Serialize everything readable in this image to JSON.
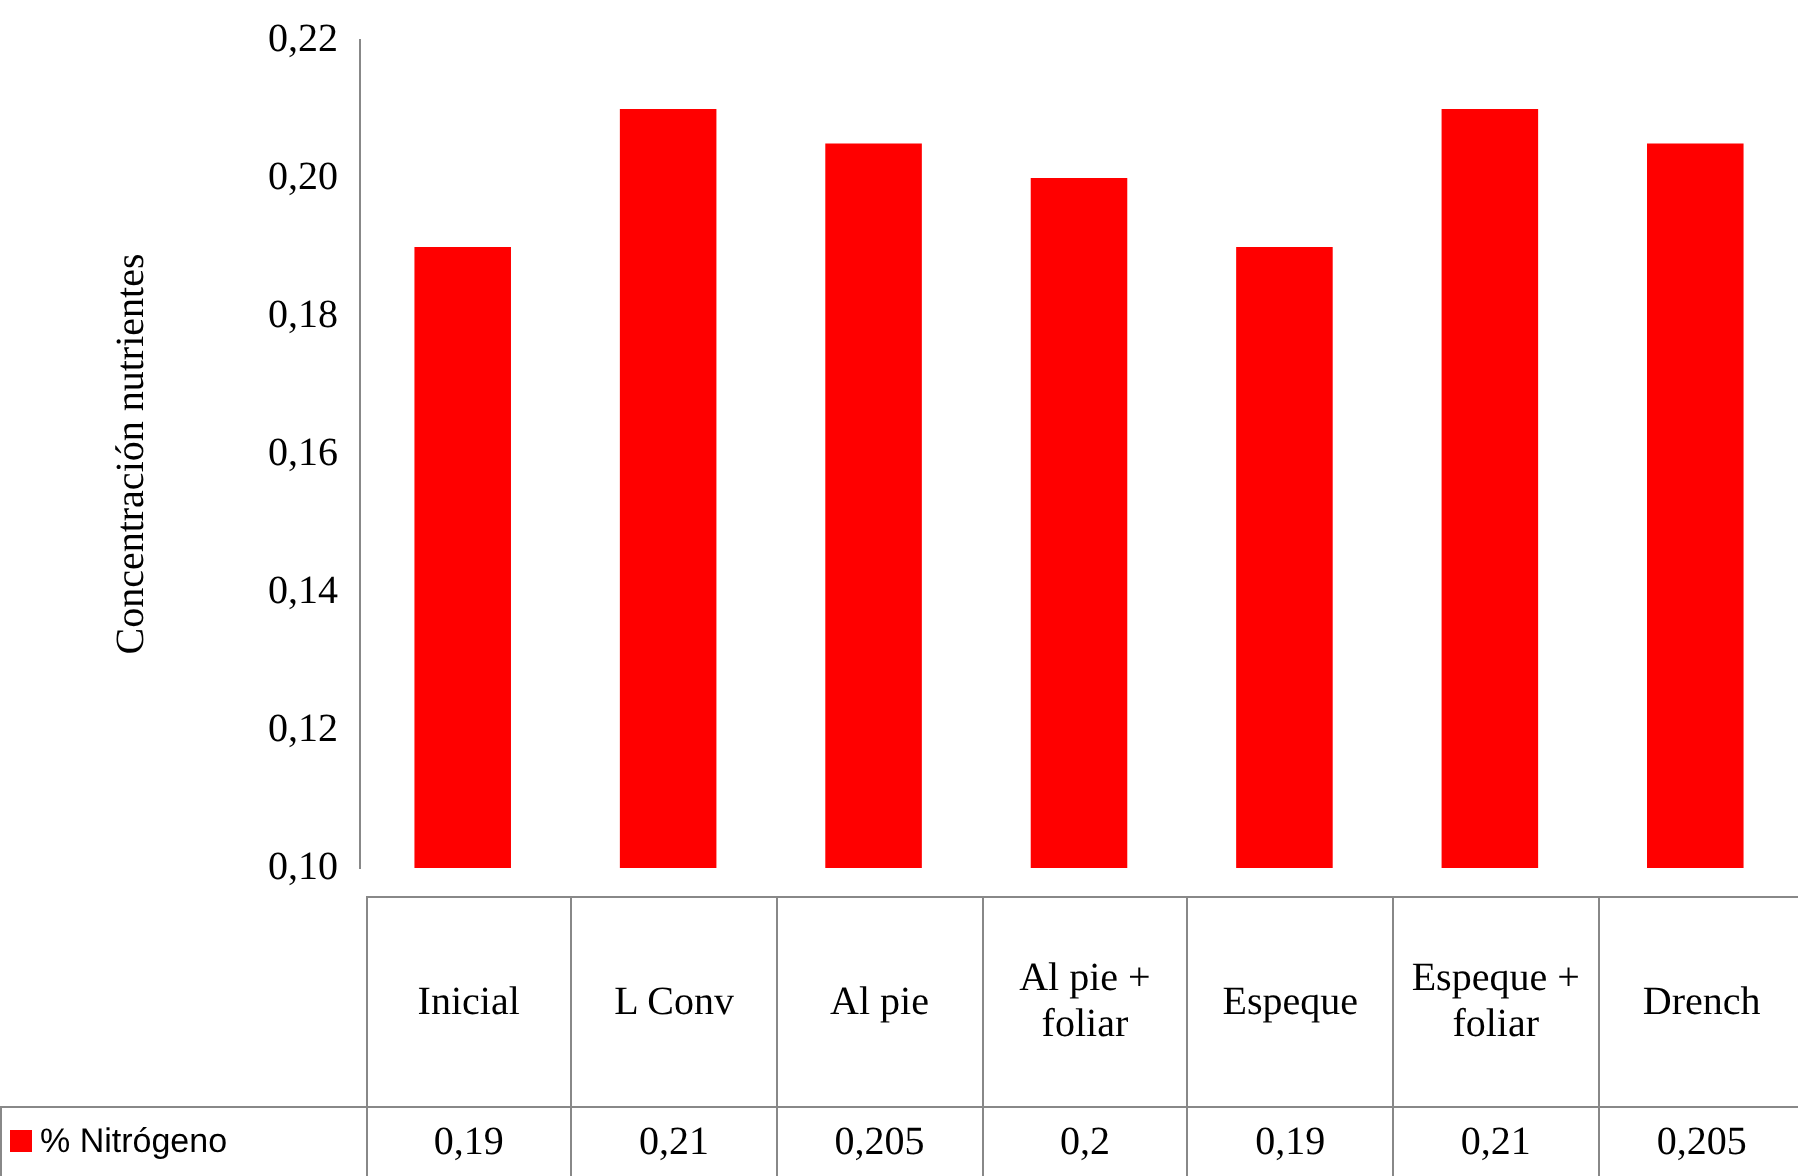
{
  "chart_data": {
    "type": "bar",
    "ylabel": "Concentración nutrientes",
    "categories": [
      "Inicial",
      "L Conv",
      "Al pie",
      "Al pie + foliar",
      "Espeque",
      "Espeque + foliar",
      "Drench"
    ],
    "series": [
      {
        "name": "% Nitrógeno",
        "color": "#ff0000",
        "values": [
          0.19,
          0.21,
          0.205,
          0.2,
          0.19,
          0.21,
          0.205
        ],
        "value_labels": [
          "0,19",
          "0,21",
          "0,205",
          "0,2",
          "0,19",
          "0,21",
          "0,205"
        ]
      }
    ],
    "ylim": [
      0.1,
      0.22
    ],
    "yticks": [
      {
        "value": 0.1,
        "label": "0,10"
      },
      {
        "value": 0.12,
        "label": "0,12"
      },
      {
        "value": 0.14,
        "label": "0,14"
      },
      {
        "value": 0.16,
        "label": "0,16"
      },
      {
        "value": 0.18,
        "label": "0,18"
      },
      {
        "value": 0.2,
        "label": "0,20"
      },
      {
        "value": 0.22,
        "label": "0,22"
      }
    ]
  }
}
